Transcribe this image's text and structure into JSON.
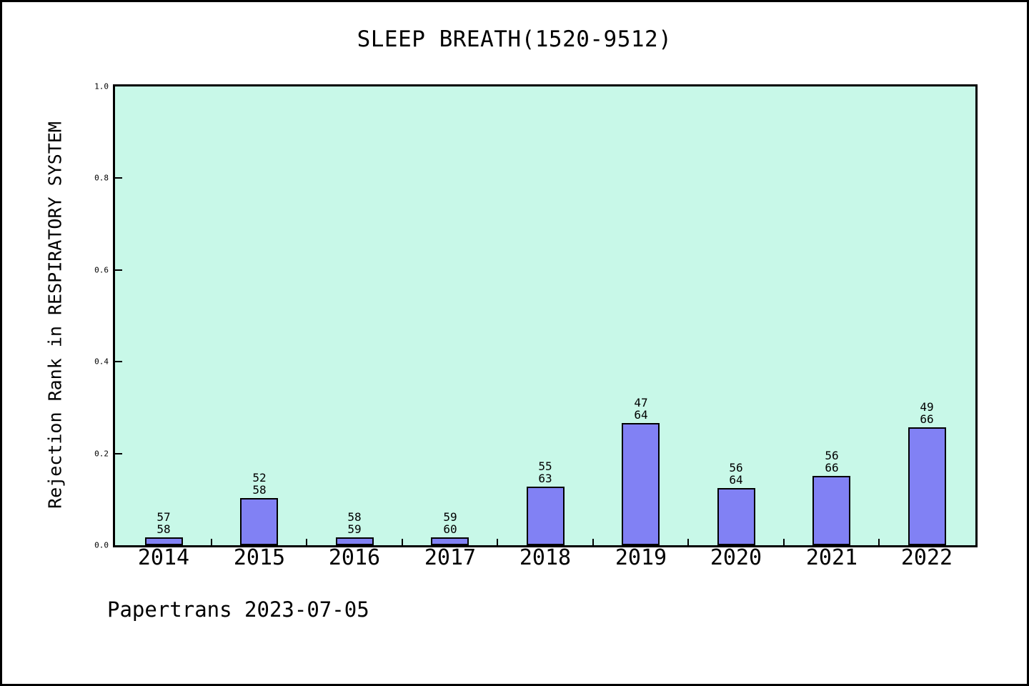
{
  "title": "SLEEP BREATH(1520-9512)",
  "footer": "Papertrans 2023-07-05",
  "chart_data": {
    "type": "bar",
    "title": "SLEEP BREATH(1520-9512)",
    "xlabel": "",
    "ylabel": "Rejection Rank in RESPIRATORY SYSTEM",
    "ylim": [
      0,
      1
    ],
    "yticks": [
      "0.0",
      "0.2",
      "0.4",
      "0.6",
      "0.8",
      "1.0"
    ],
    "grid": false,
    "legend": false,
    "plot_bg_color": "#c8f8e8",
    "bar_fill_color": "#8181f4",
    "bar_border_color": "#000000",
    "categories": [
      "2014",
      "2015",
      "2016",
      "2017",
      "2018",
      "2019",
      "2020",
      "2021",
      "2022"
    ],
    "bars": [
      {
        "category": "2014",
        "rank": 57,
        "total": 58,
        "value": 0.0172
      },
      {
        "category": "2015",
        "rank": 52,
        "total": 58,
        "value": 0.1034
      },
      {
        "category": "2016",
        "rank": 58,
        "total": 59,
        "value": 0.0169
      },
      {
        "category": "2017",
        "rank": 59,
        "total": 60,
        "value": 0.0167
      },
      {
        "category": "2018",
        "rank": 55,
        "total": 63,
        "value": 0.127
      },
      {
        "category": "2019",
        "rank": 47,
        "total": 64,
        "value": 0.2656
      },
      {
        "category": "2020",
        "rank": 56,
        "total": 64,
        "value": 0.125
      },
      {
        "category": "2021",
        "rank": 56,
        "total": 66,
        "value": 0.1515
      },
      {
        "category": "2022",
        "rank": 49,
        "total": 66,
        "value": 0.2576
      }
    ],
    "annotation_note": "each bar labeled with rank over total (rank/total), bar height = 1 - rank/total"
  }
}
